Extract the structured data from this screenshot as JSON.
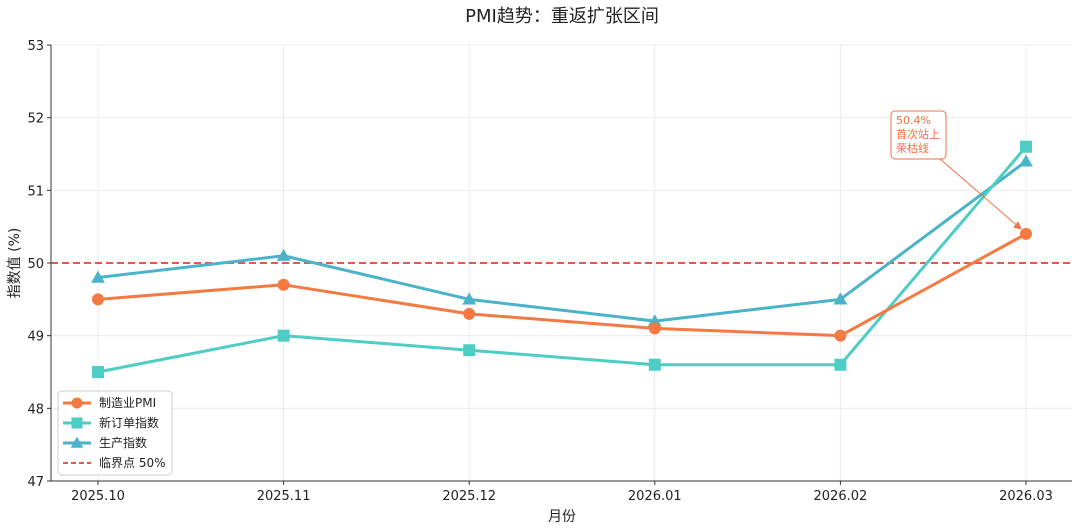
{
  "chart_data": {
    "type": "line",
    "title": "PMI趋势：重返扩张区间",
    "xlabel": "月份",
    "ylabel": "指数值 (%)",
    "categories": [
      "2025.10",
      "2025.11",
      "2025.12",
      "2026.01",
      "2026.02",
      "2026.03"
    ],
    "ylim": [
      47,
      53
    ],
    "yticks": [
      47,
      48,
      49,
      50,
      51,
      52,
      53
    ],
    "grid": true,
    "legend_position": "bottom-left",
    "series": [
      {
        "name": "制造业PMI",
        "values": [
          49.5,
          49.7,
          49.3,
          49.1,
          49.0,
          50.4
        ],
        "color": "#f47a42",
        "marker": "circle"
      },
      {
        "name": "新订单指数",
        "values": [
          48.5,
          49.0,
          48.8,
          48.6,
          48.6,
          51.6
        ],
        "color": "#4ecdc4",
        "marker": "square"
      },
      {
        "name": "生产指数",
        "values": [
          49.8,
          50.1,
          49.5,
          49.2,
          49.5,
          51.4
        ],
        "color": "#4ab3c8",
        "marker": "triangle"
      }
    ],
    "reference_line": {
      "name": "临界点 50%",
      "value": 50,
      "color": "#e05a47",
      "style": "dashed"
    },
    "annotation": {
      "lines": [
        "50.4%",
        "首次站上",
        "荣枯线"
      ],
      "target_category": "2026.03",
      "target_value": 50.4,
      "color": "#f07040"
    }
  }
}
